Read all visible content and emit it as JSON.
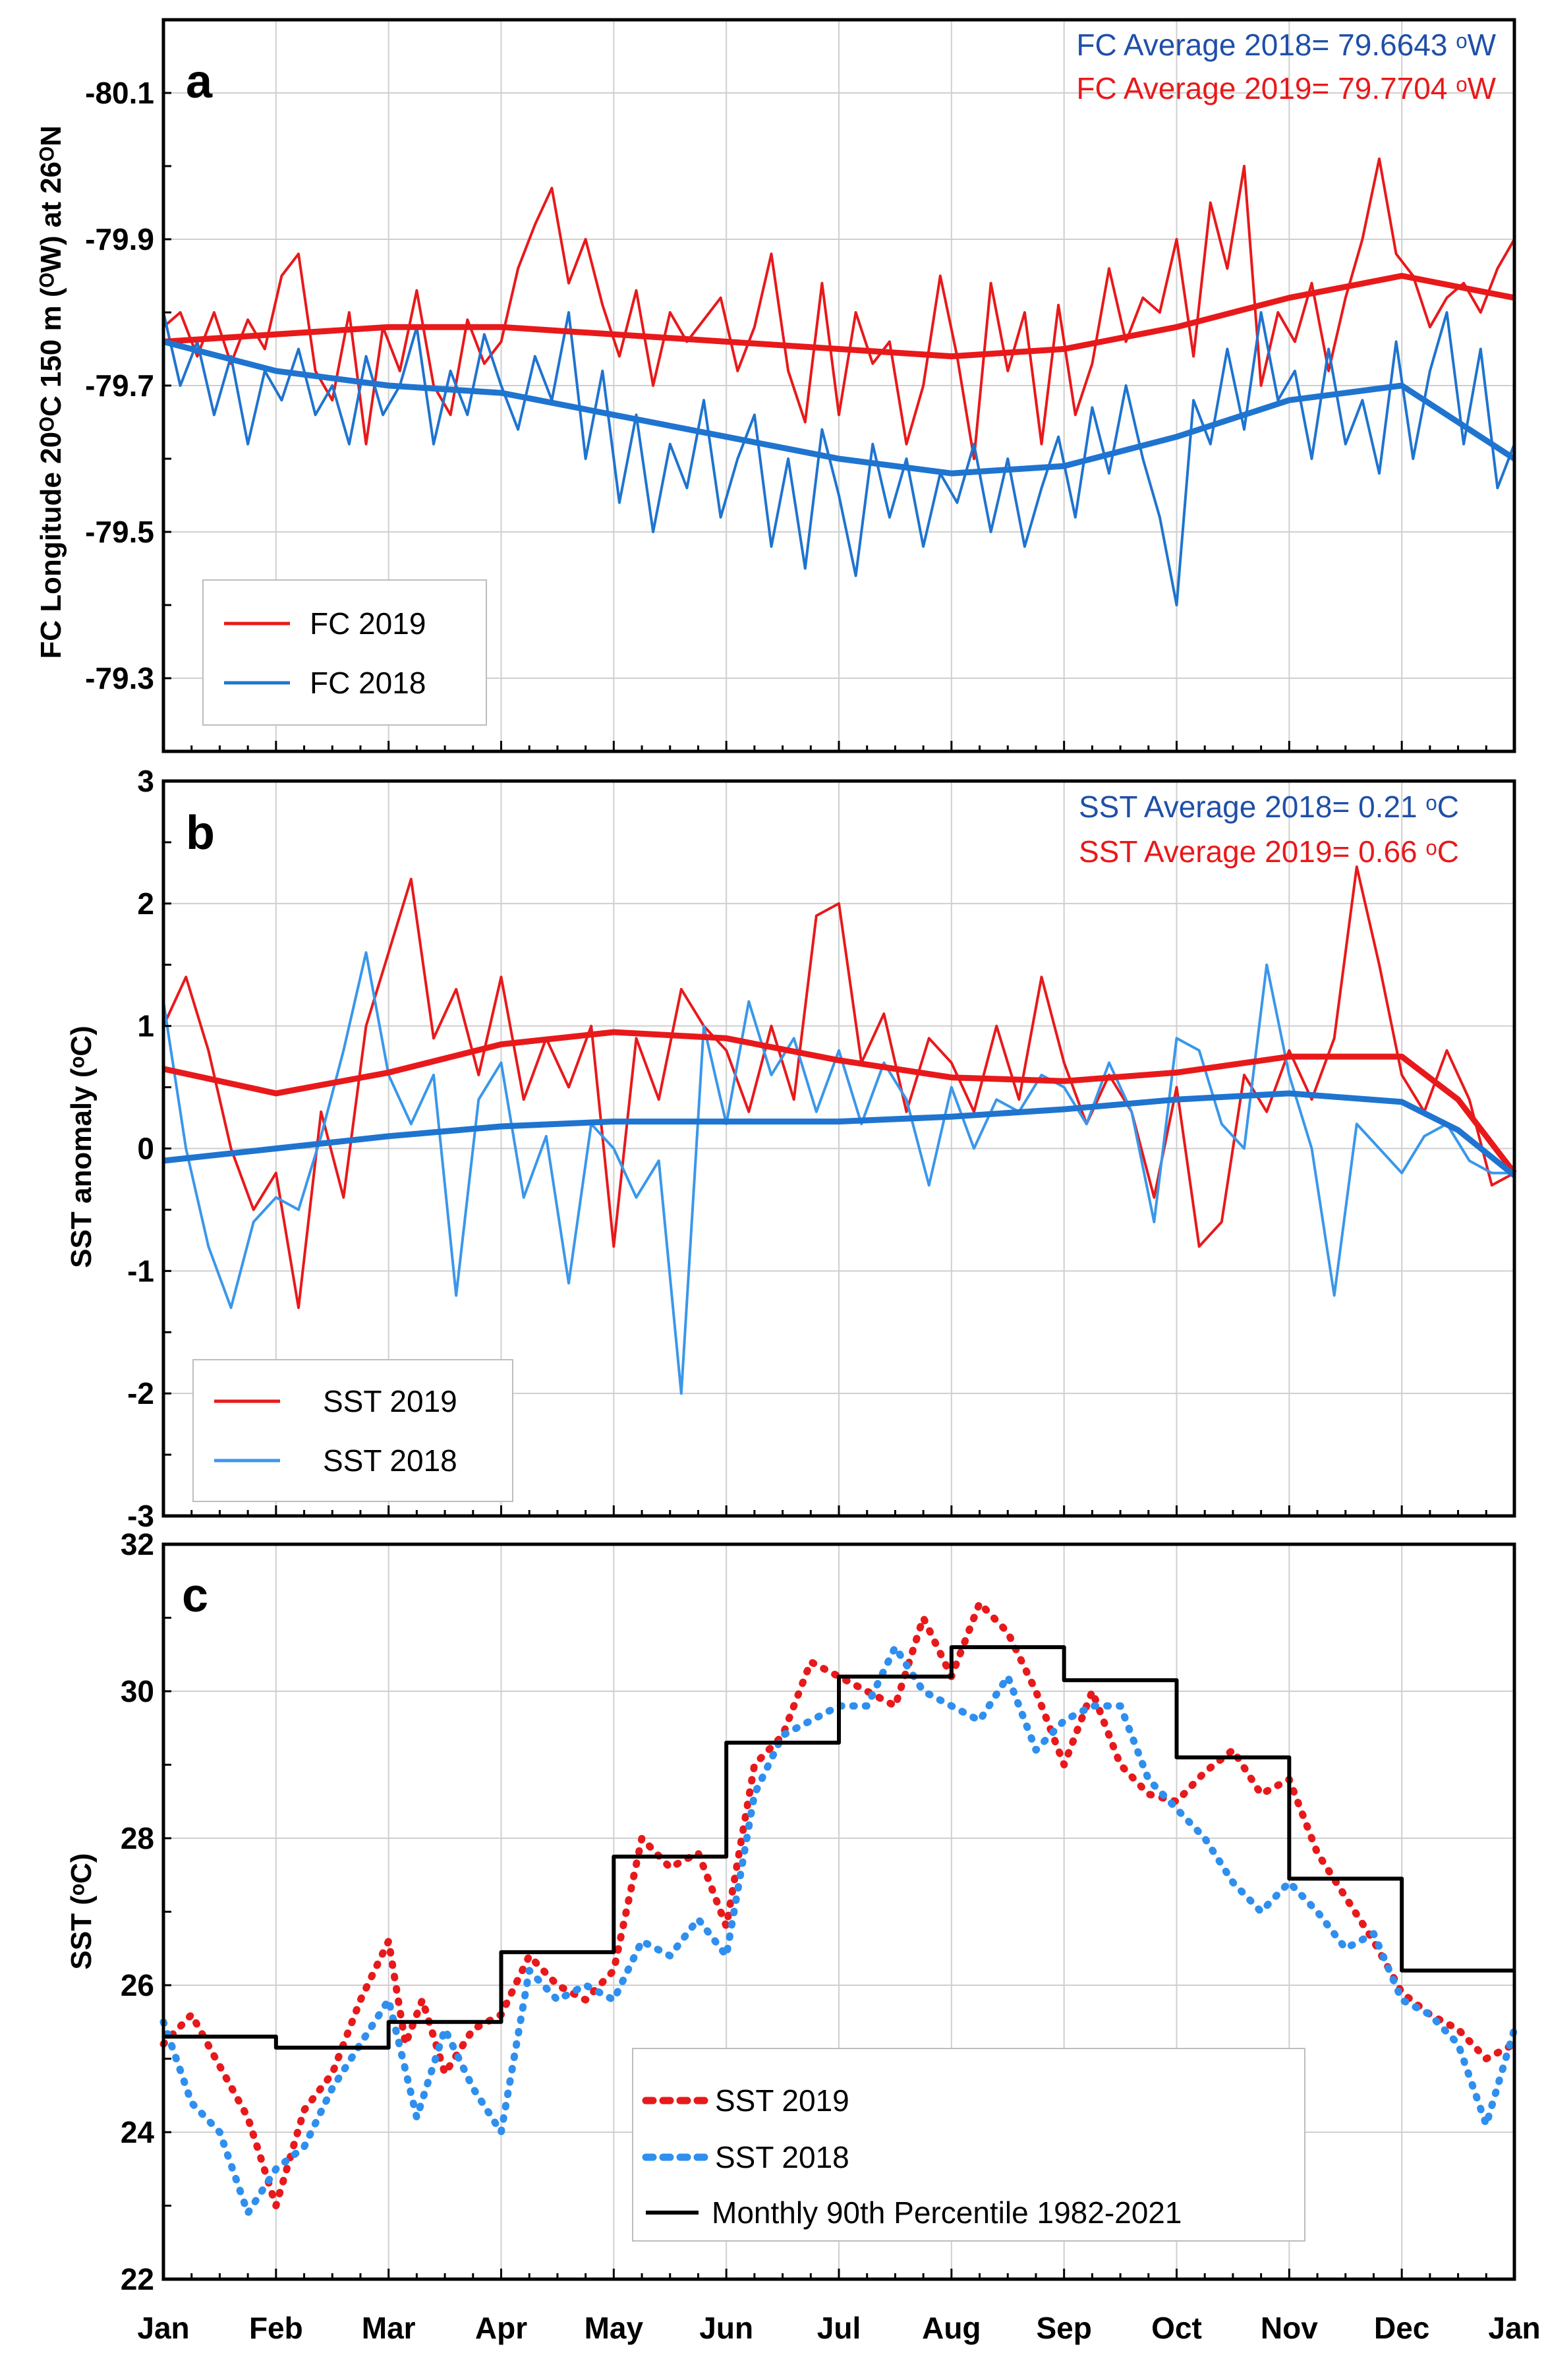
{
  "x_months": [
    "Jan",
    "Feb",
    "Mar",
    "Apr",
    "May",
    "Jun",
    "Jul",
    "Aug",
    "Sep",
    "Oct",
    "Nov",
    "Dec",
    "Jan"
  ],
  "chart_data": [
    {
      "type": "line",
      "panel": "a",
      "ylabel": "FC Longitude 20ᴼC 150 m (ᴼW) at 26ᴼN",
      "ytick_labels": [
        "-80.1",
        "-79.9",
        "-79.7",
        "-79.5",
        "-79.3"
      ],
      "yticks": [
        -80.1,
        -79.9,
        -79.7,
        -79.5,
        -79.3
      ],
      "ylim": [
        -80.2,
        -79.2
      ],
      "y_inverted": true,
      "annotations": [
        "FC Average 2018= 79.6643 ᵒW",
        "FC Average 2019= 79.7704 ᵒW"
      ],
      "legend": {
        "position": "bottom-left",
        "entries": [
          "FC 2019",
          "FC 2018"
        ]
      },
      "colors": {
        "s2019": "#e8191b",
        "s2018": "#1f74cf"
      },
      "series": [
        {
          "name": "FC 2019",
          "style": "thin",
          "x": [
            0,
            0.15,
            0.3,
            0.45,
            0.6,
            0.75,
            0.9,
            1.05,
            1.2,
            1.35,
            1.5,
            1.65,
            1.8,
            1.95,
            2.1,
            2.25,
            2.4,
            2.55,
            2.7,
            2.85,
            3.0,
            3.15,
            3.3,
            3.45,
            3.6,
            3.75,
            3.9,
            4.05,
            4.2,
            4.35,
            4.5,
            4.65,
            4.8,
            4.95,
            5.1,
            5.25,
            5.4,
            5.55,
            5.7,
            5.85,
            6.0,
            6.15,
            6.3,
            6.45,
            6.6,
            6.75,
            6.9,
            7.05,
            7.2,
            7.35,
            7.5,
            7.65,
            7.8,
            7.95,
            8.1,
            8.25,
            8.4,
            8.55,
            8.7,
            8.85,
            9.0,
            9.15,
            9.3,
            9.45,
            9.6,
            9.75,
            9.9,
            10.05,
            10.2,
            10.35,
            10.5,
            10.65,
            10.8,
            10.95,
            11.1,
            11.25,
            11.4,
            11.55,
            11.7,
            11.85,
            12.0
          ],
          "y": [
            -79.78,
            -79.8,
            -79.74,
            -79.8,
            -79.73,
            -79.79,
            -79.75,
            -79.85,
            -79.88,
            -79.72,
            -79.68,
            -79.8,
            -79.62,
            -79.78,
            -79.72,
            -79.83,
            -79.7,
            -79.66,
            -79.79,
            -79.73,
            -79.76,
            -79.86,
            -79.92,
            -79.97,
            -79.84,
            -79.9,
            -79.81,
            -79.74,
            -79.83,
            -79.7,
            -79.8,
            -79.76,
            -79.79,
            -79.82,
            -79.72,
            -79.78,
            -79.88,
            -79.72,
            -79.65,
            -79.84,
            -79.66,
            -79.8,
            -79.73,
            -79.76,
            -79.62,
            -79.7,
            -79.85,
            -79.74,
            -79.6,
            -79.84,
            -79.72,
            -79.8,
            -79.62,
            -79.81,
            -79.66,
            -79.73,
            -79.86,
            -79.76,
            -79.82,
            -79.8,
            -79.9,
            -79.74,
            -79.95,
            -79.86,
            -80.0,
            -79.7,
            -79.8,
            -79.76,
            -79.84,
            -79.72,
            -79.82,
            -79.9,
            -80.01,
            -79.88,
            -79.85,
            -79.78,
            -79.82,
            -79.84,
            -79.8,
            -79.86,
            -79.9
          ]
        },
        {
          "name": "FC 2018",
          "style": "thin",
          "x": [
            0,
            0.15,
            0.3,
            0.45,
            0.6,
            0.75,
            0.9,
            1.05,
            1.2,
            1.35,
            1.5,
            1.65,
            1.8,
            1.95,
            2.1,
            2.25,
            2.4,
            2.55,
            2.7,
            2.85,
            3.0,
            3.15,
            3.3,
            3.45,
            3.6,
            3.75,
            3.9,
            4.05,
            4.2,
            4.35,
            4.5,
            4.65,
            4.8,
            4.95,
            5.1,
            5.25,
            5.4,
            5.55,
            5.7,
            5.85,
            6.0,
            6.15,
            6.3,
            6.45,
            6.6,
            6.75,
            6.9,
            7.05,
            7.2,
            7.35,
            7.5,
            7.65,
            7.8,
            7.95,
            8.1,
            8.25,
            8.4,
            8.55,
            8.7,
            8.85,
            9.0,
            9.15,
            9.3,
            9.45,
            9.6,
            9.75,
            9.9,
            10.05,
            10.2,
            10.35,
            10.5,
            10.65,
            10.8,
            10.95,
            11.1,
            11.25,
            11.4,
            11.55,
            11.7,
            11.85,
            12.0
          ],
          "y": [
            -79.8,
            -79.7,
            -79.76,
            -79.66,
            -79.74,
            -79.62,
            -79.72,
            -79.68,
            -79.75,
            -79.66,
            -79.7,
            -79.62,
            -79.74,
            -79.66,
            -79.7,
            -79.78,
            -79.62,
            -79.72,
            -79.66,
            -79.77,
            -79.7,
            -79.64,
            -79.74,
            -79.68,
            -79.8,
            -79.6,
            -79.72,
            -79.54,
            -79.66,
            -79.5,
            -79.62,
            -79.56,
            -79.68,
            -79.52,
            -79.6,
            -79.66,
            -79.48,
            -79.6,
            -79.45,
            -79.64,
            -79.55,
            -79.44,
            -79.62,
            -79.52,
            -79.6,
            -79.48,
            -79.58,
            -79.54,
            -79.62,
            -79.5,
            -79.6,
            -79.48,
            -79.56,
            -79.63,
            -79.52,
            -79.67,
            -79.58,
            -79.7,
            -79.6,
            -79.52,
            -79.4,
            -79.68,
            -79.62,
            -79.75,
            -79.64,
            -79.8,
            -79.68,
            -79.72,
            -79.6,
            -79.75,
            -79.62,
            -79.68,
            -79.58,
            -79.76,
            -79.6,
            -79.72,
            -79.8,
            -79.62,
            -79.75,
            -79.56,
            -79.62
          ]
        },
        {
          "name": "FC 2019 fit",
          "style": "thick",
          "x": [
            0,
            1,
            2,
            3,
            4,
            5,
            6,
            7,
            8,
            9,
            10,
            11,
            12
          ],
          "y": [
            -79.76,
            -79.77,
            -79.78,
            -79.78,
            -79.77,
            -79.76,
            -79.75,
            -79.74,
            -79.75,
            -79.78,
            -79.82,
            -79.85,
            -79.82
          ]
        },
        {
          "name": "FC 2018 fit",
          "style": "thick",
          "x": [
            0,
            1,
            2,
            3,
            4,
            5,
            6,
            7,
            8,
            9,
            10,
            11,
            12
          ],
          "y": [
            -79.76,
            -79.72,
            -79.7,
            -79.69,
            -79.66,
            -79.63,
            -79.6,
            -79.58,
            -79.59,
            -79.63,
            -79.68,
            -79.7,
            -79.6
          ]
        }
      ]
    },
    {
      "type": "line",
      "panel": "b",
      "ylabel": "SST anomaly (ᵒC)",
      "ytick_labels": [
        "3",
        "2",
        "1",
        "0",
        "-1",
        "-2",
        "-3"
      ],
      "yticks": [
        3,
        2,
        1,
        0,
        -1,
        -2,
        -3
      ],
      "ylim": [
        -3,
        3
      ],
      "annotations": [
        "SST Average 2018= 0.21 ᵒC",
        "SST Average 2019= 0.66 ᵒC"
      ],
      "legend": {
        "position": "bottom-left",
        "entries": [
          "SST 2019",
          "SST 2018"
        ]
      },
      "colors": {
        "s2019": "#e8191b",
        "s2018": "#3a97ea",
        "fit2018": "#1f74cf"
      },
      "series": [
        {
          "name": "SST 2019",
          "style": "thin",
          "x": [
            0,
            0.2,
            0.4,
            0.6,
            0.8,
            1.0,
            1.2,
            1.4,
            1.6,
            1.8,
            2.0,
            2.2,
            2.4,
            2.6,
            2.8,
            3.0,
            3.2,
            3.4,
            3.6,
            3.8,
            4.0,
            4.2,
            4.4,
            4.6,
            4.8,
            5.0,
            5.2,
            5.4,
            5.6,
            5.8,
            6.0,
            6.2,
            6.4,
            6.6,
            6.8,
            7.0,
            7.2,
            7.4,
            7.6,
            7.8,
            8.0,
            8.2,
            8.4,
            8.6,
            8.8,
            9.0,
            9.2,
            9.4,
            9.6,
            9.8,
            10.0,
            10.2,
            10.4,
            10.6,
            10.8,
            11.0,
            11.2,
            11.4,
            11.6,
            11.8,
            12.0
          ],
          "y": [
            1.0,
            1.4,
            0.8,
            0.0,
            -0.5,
            -0.2,
            -1.3,
            0.3,
            -0.4,
            1.0,
            1.6,
            2.2,
            0.9,
            1.3,
            0.6,
            1.4,
            0.4,
            0.9,
            0.5,
            1.0,
            -0.8,
            0.9,
            0.4,
            1.3,
            1.0,
            0.8,
            0.3,
            1.0,
            0.4,
            1.9,
            2.0,
            0.7,
            1.1,
            0.3,
            0.9,
            0.7,
            0.3,
            1.0,
            0.4,
            1.4,
            0.7,
            0.2,
            0.6,
            0.3,
            -0.4,
            0.5,
            -0.8,
            -0.6,
            0.6,
            0.3,
            0.8,
            0.4,
            0.9,
            2.3,
            1.5,
            0.6,
            0.3,
            0.8,
            0.4,
            -0.3,
            -0.2
          ]
        },
        {
          "name": "SST 2018",
          "style": "thin",
          "x": [
            0,
            0.2,
            0.4,
            0.6,
            0.8,
            1.0,
            1.2,
            1.4,
            1.6,
            1.8,
            2.0,
            2.2,
            2.4,
            2.6,
            2.8,
            3.0,
            3.2,
            3.4,
            3.6,
            3.8,
            4.0,
            4.2,
            4.4,
            4.6,
            4.8,
            5.0,
            5.2,
            5.4,
            5.6,
            5.8,
            6.0,
            6.2,
            6.4,
            6.6,
            6.8,
            7.0,
            7.2,
            7.4,
            7.6,
            7.8,
            8.0,
            8.2,
            8.4,
            8.6,
            8.8,
            9.0,
            9.2,
            9.4,
            9.6,
            9.8,
            10.0,
            10.2,
            10.4,
            10.6,
            10.8,
            11.0,
            11.2,
            11.4,
            11.6,
            11.8,
            12.0
          ],
          "y": [
            1.2,
            0.0,
            -0.8,
            -1.3,
            -0.6,
            -0.4,
            -0.5,
            0.1,
            0.8,
            1.6,
            0.6,
            0.2,
            0.6,
            -1.2,
            0.4,
            0.7,
            -0.4,
            0.1,
            -1.1,
            0.2,
            0.0,
            -0.4,
            -0.1,
            -2.0,
            1.0,
            0.2,
            1.2,
            0.6,
            0.9,
            0.3,
            0.8,
            0.2,
            0.7,
            0.4,
            -0.3,
            0.5,
            0.0,
            0.4,
            0.3,
            0.6,
            0.5,
            0.2,
            0.7,
            0.3,
            -0.6,
            0.9,
            0.8,
            0.2,
            0.0,
            1.5,
            0.6,
            0.0,
            -1.2,
            0.2,
            0.0,
            -0.2,
            0.1,
            0.2,
            -0.1,
            -0.2,
            -0.2
          ]
        },
        {
          "name": "SST 2019 fit",
          "style": "thick",
          "x": [
            0,
            1,
            2,
            3,
            4,
            5,
            6,
            7,
            8,
            9,
            10,
            11,
            11.5,
            12
          ],
          "y": [
            0.65,
            0.45,
            0.62,
            0.85,
            0.95,
            0.9,
            0.72,
            0.58,
            0.55,
            0.62,
            0.75,
            0.75,
            0.4,
            -0.2
          ]
        },
        {
          "name": "SST 2018 fit",
          "style": "thick",
          "x": [
            0,
            1,
            2,
            3,
            4,
            5,
            6,
            7,
            8,
            9,
            10,
            11,
            11.5,
            12
          ],
          "y": [
            -0.1,
            0.0,
            0.1,
            0.18,
            0.22,
            0.22,
            0.22,
            0.26,
            0.32,
            0.4,
            0.45,
            0.38,
            0.15,
            -0.22
          ]
        }
      ]
    },
    {
      "type": "line",
      "panel": "c",
      "ylabel": "SST (ᵒC)",
      "ytick_labels": [
        "32",
        "30",
        "28",
        "26",
        "24",
        "22"
      ],
      "yticks": [
        32,
        30,
        28,
        26,
        24,
        22
      ],
      "ylim": [
        22,
        32
      ],
      "legend": {
        "position": "bottom-center",
        "entries": [
          "SST 2019",
          "SST 2018",
          "Monthly 90th Percentile 1982-2021"
        ]
      },
      "colors": {
        "s2019": "#e8191b",
        "s2018": "#2f8fee",
        "p90": "#000000"
      },
      "series": [
        {
          "name": "SST 2019",
          "style": "dotted",
          "x": [
            0,
            0.25,
            0.5,
            0.75,
            1.0,
            1.25,
            1.5,
            1.75,
            2.0,
            2.15,
            2.3,
            2.5,
            2.75,
            3.0,
            3.25,
            3.5,
            3.75,
            4.0,
            4.25,
            4.5,
            4.75,
            5.0,
            5.25,
            5.5,
            5.75,
            6.0,
            6.25,
            6.5,
            6.75,
            7.0,
            7.25,
            7.5,
            7.75,
            8.0,
            8.25,
            8.5,
            8.75,
            9.0,
            9.25,
            9.5,
            9.75,
            10.0,
            10.25,
            10.5,
            10.75,
            11.0,
            11.25,
            11.5,
            11.75,
            12.0
          ],
          "y": [
            25.2,
            25.6,
            24.9,
            24.2,
            23.0,
            24.3,
            24.8,
            25.8,
            26.6,
            25.2,
            25.8,
            24.8,
            25.4,
            25.6,
            26.4,
            26.0,
            25.8,
            26.2,
            28.0,
            27.6,
            27.8,
            26.8,
            29.0,
            29.4,
            30.4,
            30.2,
            30.0,
            29.8,
            31.0,
            30.2,
            31.2,
            30.8,
            30.0,
            29.0,
            30.0,
            29.0,
            28.6,
            28.5,
            28.9,
            29.2,
            28.6,
            28.8,
            27.8,
            27.2,
            26.6,
            25.9,
            25.6,
            25.4,
            25.0,
            25.2
          ]
        },
        {
          "name": "SST 2018",
          "style": "dotted",
          "x": [
            0,
            0.25,
            0.5,
            0.75,
            1.0,
            1.25,
            1.5,
            1.75,
            2.0,
            2.25,
            2.5,
            2.75,
            3.0,
            3.25,
            3.5,
            3.75,
            4.0,
            4.25,
            4.5,
            4.75,
            5.0,
            5.25,
            5.5,
            5.75,
            6.0,
            6.25,
            6.5,
            6.75,
            7.0,
            7.25,
            7.5,
            7.75,
            8.0,
            8.25,
            8.5,
            8.75,
            9.0,
            9.25,
            9.5,
            9.75,
            10.0,
            10.25,
            10.5,
            10.75,
            11.0,
            11.25,
            11.5,
            11.75,
            12.0
          ],
          "y": [
            25.5,
            24.4,
            24.0,
            22.9,
            23.5,
            23.8,
            24.6,
            25.2,
            25.8,
            24.2,
            25.4,
            24.6,
            24.0,
            26.2,
            25.8,
            26.0,
            25.8,
            26.6,
            26.4,
            26.9,
            26.4,
            28.6,
            29.4,
            29.6,
            29.8,
            29.8,
            30.6,
            30.0,
            29.8,
            29.6,
            30.2,
            29.2,
            29.6,
            29.8,
            29.8,
            28.8,
            28.4,
            28.0,
            27.4,
            27.0,
            27.4,
            27.0,
            26.5,
            26.7,
            25.8,
            25.6,
            25.2,
            24.1,
            25.4
          ]
        },
        {
          "name": "Monthly 90th Percentile 1982-2021",
          "style": "step",
          "x": [
            0,
            1,
            2,
            3,
            4,
            5,
            6,
            7,
            8,
            9,
            10,
            11,
            12
          ],
          "y": [
            25.3,
            25.15,
            25.5,
            26.45,
            27.75,
            29.3,
            30.2,
            30.6,
            30.15,
            29.1,
            27.45,
            26.2,
            26.2
          ]
        }
      ]
    }
  ]
}
